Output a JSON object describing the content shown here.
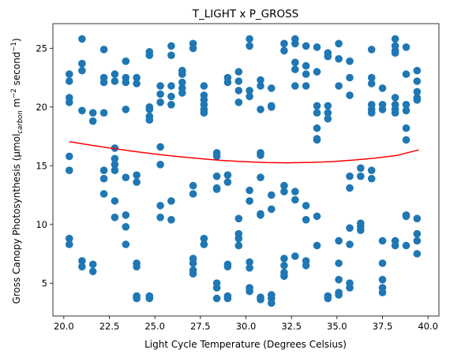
{
  "chart_data": {
    "type": "scatter",
    "title": "T_LIGHT x P_GROSS",
    "xlabel": "Light Cycle Temperature (Degrees Celsius)",
    "ylabel_parts": {
      "prefix": "Gross Canopy Photosynthesis (µmol",
      "subscript": "carbon",
      "mid": " m",
      "sup1": "−2",
      "unit": " second",
      "sup2": "−1",
      "suffix": ")"
    },
    "xlim": [
      19.4,
      40.6
    ],
    "ylim": [
      2.2,
      27.1
    ],
    "x_ticks": [
      20.0,
      22.5,
      25.0,
      27.5,
      30.0,
      32.5,
      35.0,
      37.5,
      40.0
    ],
    "x_tick_labels": [
      "20.0",
      "22.5",
      "25.0",
      "27.5",
      "30.0",
      "32.5",
      "35.0",
      "37.5",
      "40.0"
    ],
    "y_ticks": [
      5,
      10,
      15,
      20,
      25
    ],
    "y_tick_labels": [
      "5",
      "10",
      "15",
      "20",
      "25"
    ],
    "grid": false,
    "point_color": "#1f77b4",
    "fit_color": "#ff0000",
    "points": [
      [
        20.3,
        22.8
      ],
      [
        20.3,
        22.2
      ],
      [
        20.3,
        20.8
      ],
      [
        20.3,
        20.4
      ],
      [
        20.3,
        15.8
      ],
      [
        20.3,
        14.6
      ],
      [
        20.3,
        8.8
      ],
      [
        20.3,
        8.3
      ],
      [
        21.0,
        25.8
      ],
      [
        21.0,
        23.7
      ],
      [
        21.0,
        23.1
      ],
      [
        21.0,
        19.7
      ],
      [
        21.0,
        6.9
      ],
      [
        21.0,
        6.4
      ],
      [
        21.6,
        19.5
      ],
      [
        21.6,
        18.8
      ],
      [
        21.6,
        6.6
      ],
      [
        21.6,
        6.0
      ],
      [
        22.2,
        24.9
      ],
      [
        22.2,
        22.5
      ],
      [
        22.2,
        22.1
      ],
      [
        22.2,
        19.5
      ],
      [
        22.2,
        14.6
      ],
      [
        22.2,
        13.9
      ],
      [
        22.2,
        12.6
      ],
      [
        22.8,
        22.8
      ],
      [
        22.8,
        22.2
      ],
      [
        22.8,
        16.5
      ],
      [
        22.8,
        15.6
      ],
      [
        22.8,
        15.1
      ],
      [
        22.8,
        14.6
      ],
      [
        22.8,
        12.0
      ],
      [
        22.8,
        10.6
      ],
      [
        23.4,
        23.9
      ],
      [
        23.4,
        22.5
      ],
      [
        23.4,
        22.1
      ],
      [
        23.4,
        19.8
      ],
      [
        23.4,
        14.0
      ],
      [
        23.4,
        10.8
      ],
      [
        23.4,
        9.8
      ],
      [
        23.4,
        8.3
      ],
      [
        24.0,
        22.5
      ],
      [
        24.0,
        22.0
      ],
      [
        24.0,
        14.2
      ],
      [
        24.0,
        13.6
      ],
      [
        24.0,
        6.7
      ],
      [
        24.0,
        6.4
      ],
      [
        24.0,
        3.9
      ],
      [
        24.0,
        3.7
      ],
      [
        24.7,
        24.7
      ],
      [
        24.7,
        24.4
      ],
      [
        24.7,
        20.0
      ],
      [
        24.7,
        19.8
      ],
      [
        24.7,
        19.2
      ],
      [
        24.7,
        18.9
      ],
      [
        24.7,
        3.9
      ],
      [
        24.7,
        3.7
      ],
      [
        25.3,
        21.8
      ],
      [
        25.3,
        21.1
      ],
      [
        25.3,
        20.4
      ],
      [
        25.3,
        16.6
      ],
      [
        25.3,
        15.1
      ],
      [
        25.3,
        11.6
      ],
      [
        25.3,
        10.6
      ],
      [
        25.9,
        25.2
      ],
      [
        25.9,
        24.4
      ],
      [
        25.9,
        21.8
      ],
      [
        25.9,
        20.9
      ],
      [
        25.9,
        20.2
      ],
      [
        25.9,
        12.0
      ],
      [
        25.9,
        10.4
      ],
      [
        26.5,
        23.1
      ],
      [
        26.5,
        22.8
      ],
      [
        26.5,
        22.1
      ],
      [
        26.5,
        21.6
      ],
      [
        26.5,
        21.2
      ],
      [
        27.1,
        25.4
      ],
      [
        27.1,
        25.0
      ],
      [
        27.1,
        13.3
      ],
      [
        27.1,
        12.6
      ],
      [
        27.1,
        7.1
      ],
      [
        27.1,
        6.7
      ],
      [
        27.1,
        6.1
      ],
      [
        27.1,
        5.8
      ],
      [
        27.7,
        21.8
      ],
      [
        27.7,
        21.0
      ],
      [
        27.7,
        20.6
      ],
      [
        27.7,
        20.2
      ],
      [
        27.7,
        19.8
      ],
      [
        27.7,
        19.5
      ],
      [
        27.7,
        8.8
      ],
      [
        27.7,
        8.3
      ],
      [
        28.4,
        16.1
      ],
      [
        28.4,
        15.8
      ],
      [
        28.4,
        14.1
      ],
      [
        28.4,
        13.1
      ],
      [
        28.4,
        13.0
      ],
      [
        28.4,
        5.0
      ],
      [
        28.4,
        4.6
      ],
      [
        28.4,
        3.7
      ],
      [
        29.0,
        22.5
      ],
      [
        29.0,
        22.1
      ],
      [
        29.0,
        14.2
      ],
      [
        29.0,
        13.6
      ],
      [
        29.0,
        6.6
      ],
      [
        29.0,
        6.4
      ],
      [
        29.0,
        3.9
      ],
      [
        29.0,
        3.7
      ],
      [
        29.6,
        23.0
      ],
      [
        29.6,
        22.2
      ],
      [
        29.6,
        21.4
      ],
      [
        29.6,
        20.4
      ],
      [
        29.6,
        10.5
      ],
      [
        29.6,
        9.2
      ],
      [
        29.6,
        8.8
      ],
      [
        29.6,
        8.2
      ],
      [
        30.2,
        25.8
      ],
      [
        30.2,
        25.2
      ],
      [
        30.2,
        21.4
      ],
      [
        30.2,
        20.9
      ],
      [
        30.2,
        12.9
      ],
      [
        30.2,
        12.0
      ],
      [
        30.2,
        6.8
      ],
      [
        30.2,
        6.3
      ],
      [
        30.2,
        4.6
      ],
      [
        30.2,
        4.3
      ],
      [
        30.8,
        22.3
      ],
      [
        30.8,
        21.8
      ],
      [
        30.8,
        19.8
      ],
      [
        30.8,
        16.1
      ],
      [
        30.8,
        15.9
      ],
      [
        30.8,
        14.0
      ],
      [
        30.8,
        10.9
      ],
      [
        30.8,
        10.8
      ],
      [
        30.8,
        3.8
      ],
      [
        30.8,
        3.6
      ],
      [
        31.4,
        21.6
      ],
      [
        31.4,
        20.1
      ],
      [
        31.4,
        20.0
      ],
      [
        31.4,
        12.5
      ],
      [
        31.4,
        11.3
      ],
      [
        31.4,
        4.0
      ],
      [
        31.4,
        3.7
      ],
      [
        31.4,
        3.3
      ],
      [
        32.1,
        25.4
      ],
      [
        32.1,
        24.8
      ],
      [
        32.1,
        13.3
      ],
      [
        32.1,
        12.8
      ],
      [
        32.1,
        7.1
      ],
      [
        32.1,
        6.5
      ],
      [
        32.1,
        5.9
      ],
      [
        32.1,
        5.6
      ],
      [
        32.7,
        25.8
      ],
      [
        32.7,
        25.4
      ],
      [
        32.7,
        23.8
      ],
      [
        32.7,
        23.2
      ],
      [
        32.7,
        21.8
      ],
      [
        32.7,
        12.8
      ],
      [
        32.7,
        12.1
      ],
      [
        32.7,
        7.3
      ],
      [
        33.3,
        25.2
      ],
      [
        33.3,
        23.5
      ],
      [
        33.3,
        22.8
      ],
      [
        33.3,
        21.8
      ],
      [
        33.3,
        11.6
      ],
      [
        33.3,
        10.4
      ],
      [
        33.3,
        6.9
      ],
      [
        33.3,
        6.5
      ],
      [
        33.9,
        25.1
      ],
      [
        33.9,
        23.0
      ],
      [
        33.9,
        20.1
      ],
      [
        33.9,
        19.5
      ],
      [
        33.9,
        18.2
      ],
      [
        33.9,
        17.3
      ],
      [
        33.9,
        17.2
      ],
      [
        33.9,
        10.7
      ],
      [
        33.9,
        8.2
      ],
      [
        34.5,
        24.6
      ],
      [
        34.5,
        24.3
      ],
      [
        34.5,
        20.1
      ],
      [
        34.5,
        19.5
      ],
      [
        34.5,
        19.0
      ],
      [
        34.5,
        3.9
      ],
      [
        34.5,
        3.7
      ],
      [
        35.1,
        25.4
      ],
      [
        35.1,
        24.1
      ],
      [
        35.1,
        21.8
      ],
      [
        35.1,
        8.6
      ],
      [
        35.1,
        6.7
      ],
      [
        35.1,
        5.3
      ],
      [
        35.1,
        4.2
      ],
      [
        35.1,
        4.0
      ],
      [
        35.7,
        23.9
      ],
      [
        35.7,
        22.5
      ],
      [
        35.7,
        21.0
      ],
      [
        35.7,
        14.1
      ],
      [
        35.7,
        13.1
      ],
      [
        35.7,
        9.7
      ],
      [
        35.7,
        8.3
      ],
      [
        35.7,
        5.0
      ],
      [
        35.7,
        4.6
      ],
      [
        36.3,
        14.8
      ],
      [
        36.3,
        14.1
      ],
      [
        36.3,
        10.1
      ],
      [
        36.3,
        9.8
      ],
      [
        36.3,
        9.5
      ],
      [
        36.9,
        24.9
      ],
      [
        36.9,
        22.5
      ],
      [
        36.9,
        22.0
      ],
      [
        36.9,
        20.2
      ],
      [
        36.9,
        19.8
      ],
      [
        36.9,
        19.5
      ],
      [
        36.9,
        14.6
      ],
      [
        36.9,
        13.9
      ],
      [
        37.5,
        21.6
      ],
      [
        37.5,
        20.2
      ],
      [
        37.5,
        19.8
      ],
      [
        37.5,
        8.6
      ],
      [
        37.5,
        6.7
      ],
      [
        37.5,
        5.3
      ],
      [
        37.5,
        4.6
      ],
      [
        37.5,
        4.2
      ],
      [
        38.2,
        25.8
      ],
      [
        38.2,
        25.2
      ],
      [
        38.2,
        24.8
      ],
      [
        38.2,
        24.6
      ],
      [
        38.2,
        20.8
      ],
      [
        38.2,
        20.2
      ],
      [
        38.2,
        19.8
      ],
      [
        38.2,
        19.5
      ],
      [
        38.2,
        8.6
      ],
      [
        38.2,
        8.2
      ],
      [
        38.8,
        25.1
      ],
      [
        38.8,
        22.8
      ],
      [
        38.8,
        20.2
      ],
      [
        38.8,
        19.7
      ],
      [
        38.8,
        18.2
      ],
      [
        38.8,
        17.2
      ],
      [
        38.8,
        10.8
      ],
      [
        38.8,
        10.7
      ],
      [
        38.8,
        8.2
      ],
      [
        39.4,
        23.1
      ],
      [
        39.4,
        22.2
      ],
      [
        39.4,
        21.3
      ],
      [
        39.4,
        20.8
      ],
      [
        39.4,
        20.6
      ],
      [
        39.4,
        10.5
      ],
      [
        39.4,
        9.2
      ],
      [
        39.4,
        8.6
      ],
      [
        39.4,
        7.5
      ]
    ],
    "fit_line": {
      "x": [
        20.3,
        21.5,
        22.7,
        23.9,
        25.1,
        26.3,
        27.5,
        28.7,
        29.9,
        31.1,
        32.3,
        33.5,
        34.7,
        35.9,
        37.1,
        38.3,
        39.5
      ],
      "y": [
        17.05,
        16.75,
        16.47,
        16.21,
        15.98,
        15.78,
        15.6,
        15.45,
        15.35,
        15.27,
        15.25,
        15.28,
        15.35,
        15.48,
        15.65,
        15.88,
        16.35
      ]
    }
  }
}
